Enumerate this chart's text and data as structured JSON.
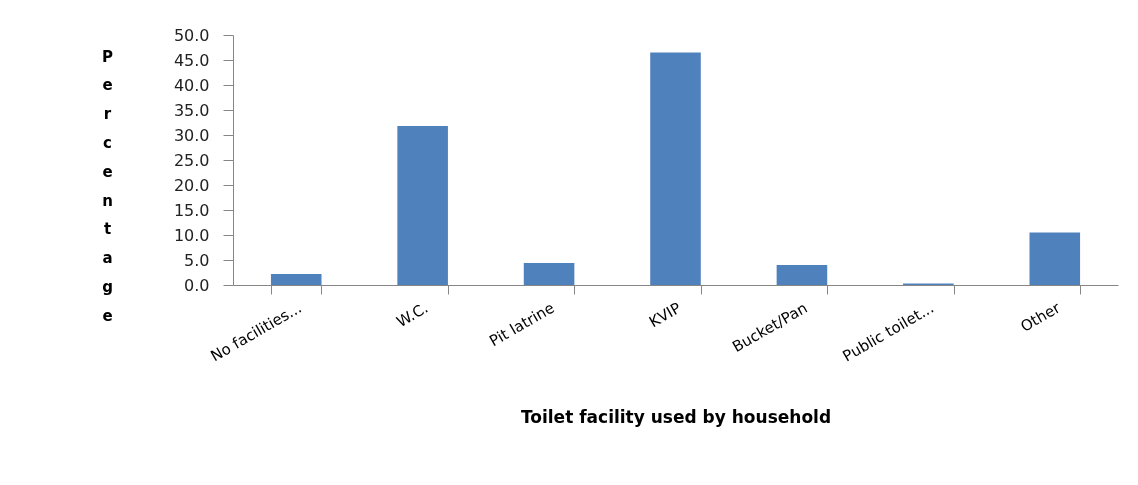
{
  "chart_data": {
    "type": "bar",
    "xlabel": "Toilet facility used by household",
    "ylabel": "Percentage",
    "categories": [
      "No facilities...",
      "W.C.",
      "Pit latrine",
      "KVIP",
      "Bucket/Pan",
      "Public toilet...",
      "Other"
    ],
    "values": [
      2.2,
      31.8,
      4.4,
      46.5,
      4.0,
      0.3,
      10.5
    ],
    "color": "#4f81bd",
    "ylim": [
      0,
      50
    ],
    "yticks": [
      {
        "value": 0,
        "label": "0.0"
      },
      {
        "value": 5,
        "label": "5.0"
      },
      {
        "value": 10,
        "label": "10.0"
      },
      {
        "value": 15,
        "label": "15.0"
      },
      {
        "value": 20,
        "label": "20.0"
      },
      {
        "value": 25,
        "label": "25.0"
      },
      {
        "value": 30,
        "label": "30.0"
      },
      {
        "value": 35,
        "label": "35.0"
      },
      {
        "value": 40,
        "label": "40.0"
      },
      {
        "value": 45,
        "label": "45.0"
      },
      {
        "value": 50,
        "label": "50.0"
      }
    ],
    "grid": false
  }
}
